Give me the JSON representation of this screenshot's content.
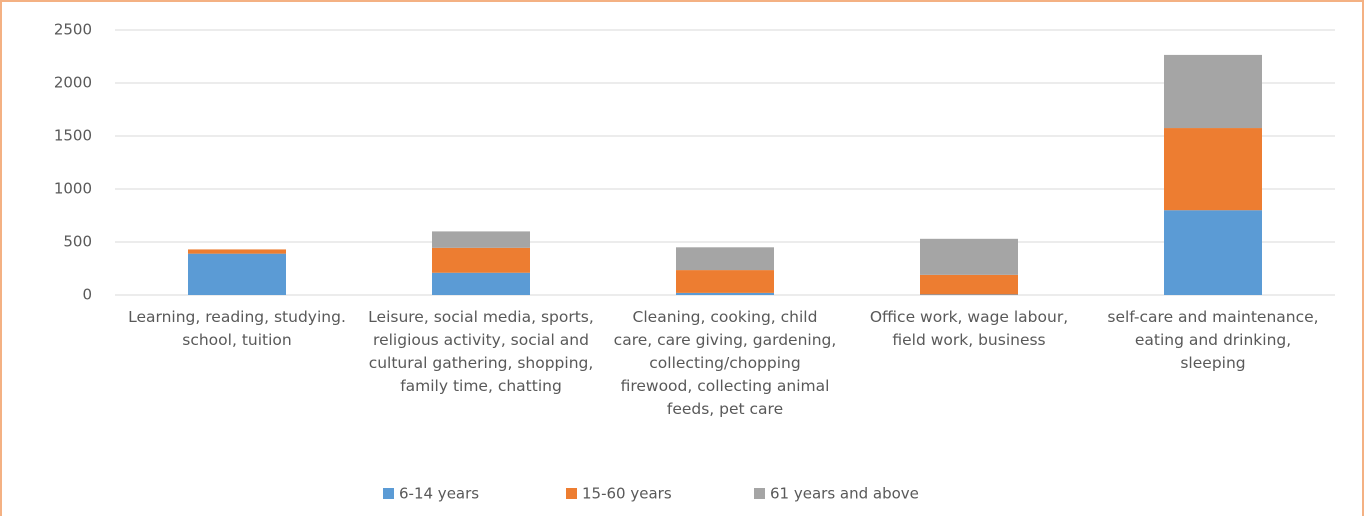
{
  "chart_data": {
    "type": "bar",
    "stacked": true,
    "categories": [
      "Learning, reading, studying. school, tuition",
      "Leisure, social media, sports, religious activity, social and cultural gathering, shopping, family time, chatting",
      "Cleaning, cooking, child care, care giving, gardening, collecting/chopping firewood, collecting animal feeds, pet care",
      "Office work, wage labour, field work, business",
      "self-care and maintenance, eating and drinking, sleeping"
    ],
    "series": [
      {
        "name": "6-14 years",
        "color": "#5b9bd5",
        "values": [
          390,
          210,
          20,
          5,
          800
        ]
      },
      {
        "name": "15-60 years",
        "color": "#ed7d31",
        "values": [
          40,
          235,
          215,
          185,
          775
        ]
      },
      {
        "name": "61 years and above",
        "color": "#a5a5a5",
        "values": [
          0,
          155,
          215,
          340,
          690
        ]
      }
    ],
    "ylim": [
      0,
      2500
    ],
    "yticks": [
      0,
      500,
      1000,
      1500,
      2000,
      2500
    ],
    "grid": true,
    "legend": "bottom"
  }
}
